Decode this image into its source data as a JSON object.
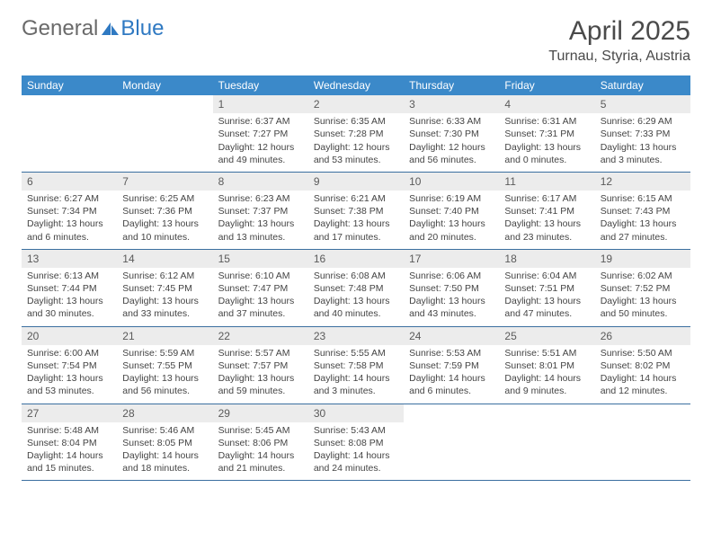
{
  "logo": {
    "text_general": "General",
    "text_blue": "Blue",
    "icon_color": "#2f79c2"
  },
  "header": {
    "month_title": "April 2025",
    "location": "Turnau, Styria, Austria"
  },
  "colors": {
    "header_bar": "#3b89c9",
    "header_text": "#ffffff",
    "daynum_bg": "#ececec",
    "daynum_text": "#5a5a5a",
    "body_text": "#444444",
    "divider": "#3b6fa0"
  },
  "daynames": [
    "Sunday",
    "Monday",
    "Tuesday",
    "Wednesday",
    "Thursday",
    "Friday",
    "Saturday"
  ],
  "weeks": [
    [
      {
        "empty": true
      },
      {
        "empty": true
      },
      {
        "num": "1",
        "sunrise": "Sunrise: 6:37 AM",
        "sunset": "Sunset: 7:27 PM",
        "daylight1": "Daylight: 12 hours",
        "daylight2": "and 49 minutes."
      },
      {
        "num": "2",
        "sunrise": "Sunrise: 6:35 AM",
        "sunset": "Sunset: 7:28 PM",
        "daylight1": "Daylight: 12 hours",
        "daylight2": "and 53 minutes."
      },
      {
        "num": "3",
        "sunrise": "Sunrise: 6:33 AM",
        "sunset": "Sunset: 7:30 PM",
        "daylight1": "Daylight: 12 hours",
        "daylight2": "and 56 minutes."
      },
      {
        "num": "4",
        "sunrise": "Sunrise: 6:31 AM",
        "sunset": "Sunset: 7:31 PM",
        "daylight1": "Daylight: 13 hours",
        "daylight2": "and 0 minutes."
      },
      {
        "num": "5",
        "sunrise": "Sunrise: 6:29 AM",
        "sunset": "Sunset: 7:33 PM",
        "daylight1": "Daylight: 13 hours",
        "daylight2": "and 3 minutes."
      }
    ],
    [
      {
        "num": "6",
        "sunrise": "Sunrise: 6:27 AM",
        "sunset": "Sunset: 7:34 PM",
        "daylight1": "Daylight: 13 hours",
        "daylight2": "and 6 minutes."
      },
      {
        "num": "7",
        "sunrise": "Sunrise: 6:25 AM",
        "sunset": "Sunset: 7:36 PM",
        "daylight1": "Daylight: 13 hours",
        "daylight2": "and 10 minutes."
      },
      {
        "num": "8",
        "sunrise": "Sunrise: 6:23 AM",
        "sunset": "Sunset: 7:37 PM",
        "daylight1": "Daylight: 13 hours",
        "daylight2": "and 13 minutes."
      },
      {
        "num": "9",
        "sunrise": "Sunrise: 6:21 AM",
        "sunset": "Sunset: 7:38 PM",
        "daylight1": "Daylight: 13 hours",
        "daylight2": "and 17 minutes."
      },
      {
        "num": "10",
        "sunrise": "Sunrise: 6:19 AM",
        "sunset": "Sunset: 7:40 PM",
        "daylight1": "Daylight: 13 hours",
        "daylight2": "and 20 minutes."
      },
      {
        "num": "11",
        "sunrise": "Sunrise: 6:17 AM",
        "sunset": "Sunset: 7:41 PM",
        "daylight1": "Daylight: 13 hours",
        "daylight2": "and 23 minutes."
      },
      {
        "num": "12",
        "sunrise": "Sunrise: 6:15 AM",
        "sunset": "Sunset: 7:43 PM",
        "daylight1": "Daylight: 13 hours",
        "daylight2": "and 27 minutes."
      }
    ],
    [
      {
        "num": "13",
        "sunrise": "Sunrise: 6:13 AM",
        "sunset": "Sunset: 7:44 PM",
        "daylight1": "Daylight: 13 hours",
        "daylight2": "and 30 minutes."
      },
      {
        "num": "14",
        "sunrise": "Sunrise: 6:12 AM",
        "sunset": "Sunset: 7:45 PM",
        "daylight1": "Daylight: 13 hours",
        "daylight2": "and 33 minutes."
      },
      {
        "num": "15",
        "sunrise": "Sunrise: 6:10 AM",
        "sunset": "Sunset: 7:47 PM",
        "daylight1": "Daylight: 13 hours",
        "daylight2": "and 37 minutes."
      },
      {
        "num": "16",
        "sunrise": "Sunrise: 6:08 AM",
        "sunset": "Sunset: 7:48 PM",
        "daylight1": "Daylight: 13 hours",
        "daylight2": "and 40 minutes."
      },
      {
        "num": "17",
        "sunrise": "Sunrise: 6:06 AM",
        "sunset": "Sunset: 7:50 PM",
        "daylight1": "Daylight: 13 hours",
        "daylight2": "and 43 minutes."
      },
      {
        "num": "18",
        "sunrise": "Sunrise: 6:04 AM",
        "sunset": "Sunset: 7:51 PM",
        "daylight1": "Daylight: 13 hours",
        "daylight2": "and 47 minutes."
      },
      {
        "num": "19",
        "sunrise": "Sunrise: 6:02 AM",
        "sunset": "Sunset: 7:52 PM",
        "daylight1": "Daylight: 13 hours",
        "daylight2": "and 50 minutes."
      }
    ],
    [
      {
        "num": "20",
        "sunrise": "Sunrise: 6:00 AM",
        "sunset": "Sunset: 7:54 PM",
        "daylight1": "Daylight: 13 hours",
        "daylight2": "and 53 minutes."
      },
      {
        "num": "21",
        "sunrise": "Sunrise: 5:59 AM",
        "sunset": "Sunset: 7:55 PM",
        "daylight1": "Daylight: 13 hours",
        "daylight2": "and 56 minutes."
      },
      {
        "num": "22",
        "sunrise": "Sunrise: 5:57 AM",
        "sunset": "Sunset: 7:57 PM",
        "daylight1": "Daylight: 13 hours",
        "daylight2": "and 59 minutes."
      },
      {
        "num": "23",
        "sunrise": "Sunrise: 5:55 AM",
        "sunset": "Sunset: 7:58 PM",
        "daylight1": "Daylight: 14 hours",
        "daylight2": "and 3 minutes."
      },
      {
        "num": "24",
        "sunrise": "Sunrise: 5:53 AM",
        "sunset": "Sunset: 7:59 PM",
        "daylight1": "Daylight: 14 hours",
        "daylight2": "and 6 minutes."
      },
      {
        "num": "25",
        "sunrise": "Sunrise: 5:51 AM",
        "sunset": "Sunset: 8:01 PM",
        "daylight1": "Daylight: 14 hours",
        "daylight2": "and 9 minutes."
      },
      {
        "num": "26",
        "sunrise": "Sunrise: 5:50 AM",
        "sunset": "Sunset: 8:02 PM",
        "daylight1": "Daylight: 14 hours",
        "daylight2": "and 12 minutes."
      }
    ],
    [
      {
        "num": "27",
        "sunrise": "Sunrise: 5:48 AM",
        "sunset": "Sunset: 8:04 PM",
        "daylight1": "Daylight: 14 hours",
        "daylight2": "and 15 minutes."
      },
      {
        "num": "28",
        "sunrise": "Sunrise: 5:46 AM",
        "sunset": "Sunset: 8:05 PM",
        "daylight1": "Daylight: 14 hours",
        "daylight2": "and 18 minutes."
      },
      {
        "num": "29",
        "sunrise": "Sunrise: 5:45 AM",
        "sunset": "Sunset: 8:06 PM",
        "daylight1": "Daylight: 14 hours",
        "daylight2": "and 21 minutes."
      },
      {
        "num": "30",
        "sunrise": "Sunrise: 5:43 AM",
        "sunset": "Sunset: 8:08 PM",
        "daylight1": "Daylight: 14 hours",
        "daylight2": "and 24 minutes."
      },
      {
        "empty": true
      },
      {
        "empty": true
      },
      {
        "empty": true
      }
    ]
  ]
}
